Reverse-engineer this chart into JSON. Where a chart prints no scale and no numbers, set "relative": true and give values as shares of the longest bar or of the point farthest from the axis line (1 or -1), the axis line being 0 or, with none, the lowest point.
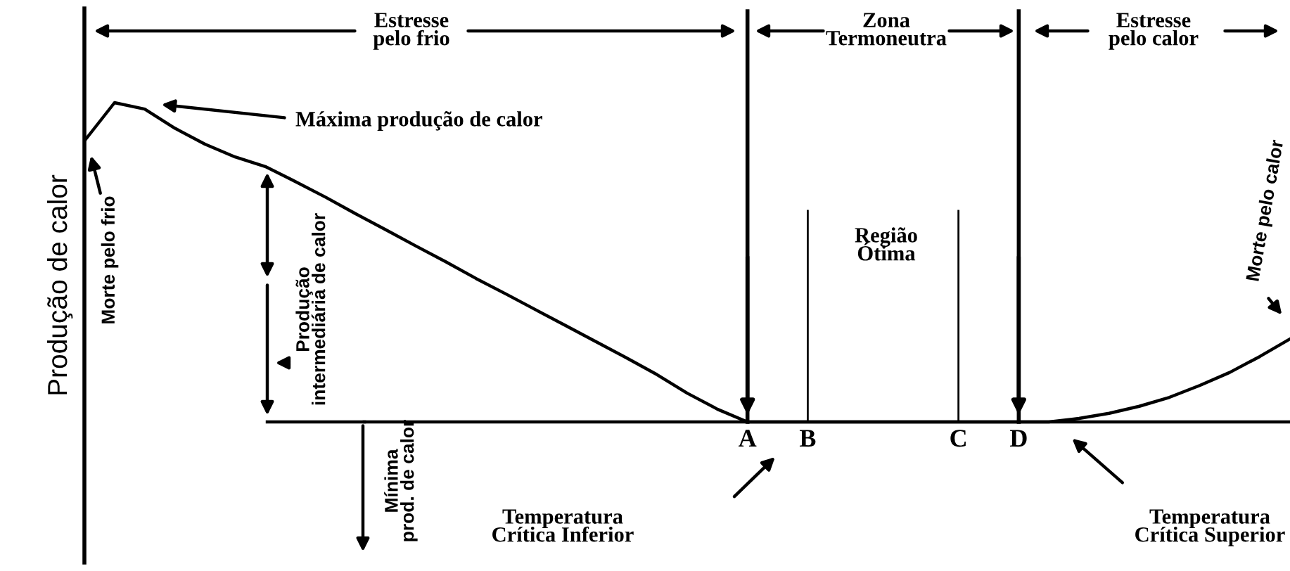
{
  "chart_data": {
    "type": "line",
    "relative": true,
    "ylabel": "Produção de calor",
    "categories": [
      null,
      null,
      null,
      null,
      null,
      null,
      null,
      null,
      null,
      null,
      null,
      null,
      null,
      null,
      null,
      null,
      null,
      null,
      null,
      null,
      null,
      null,
      "A",
      null,
      "B",
      null,
      null,
      null,
      null,
      "C",
      null,
      "D",
      null,
      null,
      null,
      null,
      null,
      null,
      null,
      null,
      null
    ],
    "series": [
      {
        "color": "#000000",
        "values": [
          0.88,
          1.0,
          0.98,
          0.92,
          0.87,
          0.83,
          0.8,
          0.753,
          0.704,
          0.652,
          0.602,
          0.551,
          0.501,
          0.449,
          0.4,
          0.35,
          0.3,
          0.25,
          0.2,
          0.148,
          0.09,
          0.04,
          0.0,
          0,
          0,
          0,
          0,
          0,
          0,
          0,
          0,
          0,
          0.0,
          0.011,
          0.027,
          0.049,
          0.077,
          0.114,
          0.155,
          0.205,
          0.26
        ]
      }
    ],
    "ref_lines": [
      {
        "axis": "x",
        "value": "A",
        "color": "#000000"
      },
      {
        "axis": "x",
        "value": "B",
        "color": "#000000"
      },
      {
        "axis": "x",
        "value": "C",
        "color": "#000000"
      },
      {
        "axis": "x",
        "value": "D",
        "color": "#000000"
      }
    ],
    "annotations": [
      "Estresse\npelo frio",
      "Zona\nTermoneutra",
      "Estresse\npelo calor",
      "Máxima produção de calor",
      "Região\nÓtima",
      "Morte pelo frio",
      "Produção\nintermediária de calor",
      "Mínima\nprod. de calor",
      "Temperatura\nCrítica Inferior",
      "Temperatura\nCrítica Superior",
      "Morte pelo calor"
    ],
    "legend": false,
    "marker": "none",
    "line_style": "solid"
  }
}
